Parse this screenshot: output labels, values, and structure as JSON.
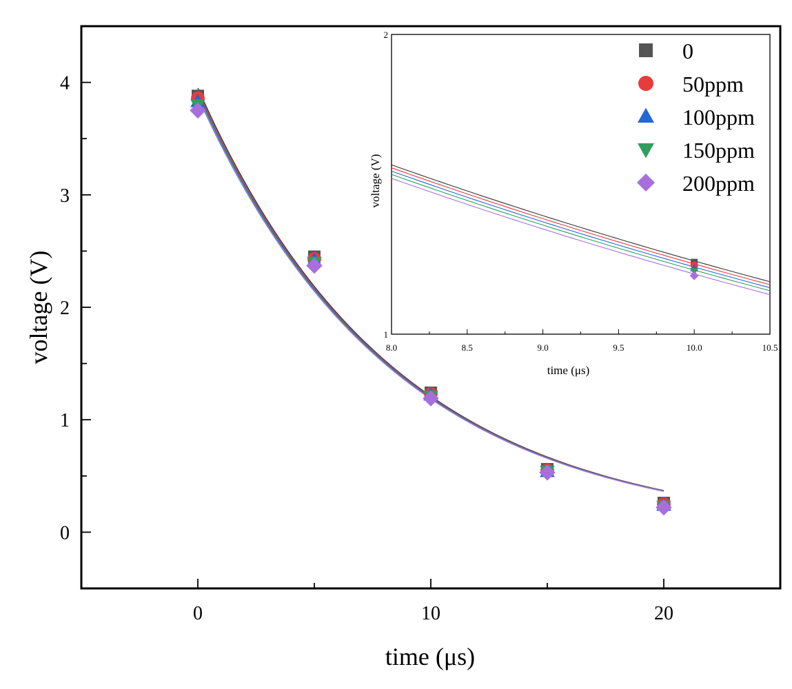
{
  "chart_data": [
    {
      "type": "scatter",
      "title": "",
      "xlabel": "time (μs)",
      "ylabel": "voltage (V)",
      "xlim": [
        -5,
        25
      ],
      "ylim": [
        -0.5,
        4.5
      ],
      "xticks": [
        0,
        10,
        20
      ],
      "yticks": [
        0,
        1,
        2,
        3,
        4
      ],
      "x": [
        0,
        5,
        10,
        15,
        20
      ],
      "series": [
        {
          "name": "0",
          "marker": "square",
          "color": "#555555",
          "values": [
            3.88,
            2.45,
            1.24,
            0.56,
            0.26
          ]
        },
        {
          "name": "50ppm",
          "marker": "circle",
          "color": "#e83b3b",
          "values": [
            3.86,
            2.43,
            1.23,
            0.55,
            0.25
          ]
        },
        {
          "name": "100ppm",
          "marker": "triangle-up",
          "color": "#2167d6",
          "values": [
            3.83,
            2.42,
            1.22,
            0.54,
            0.24
          ]
        },
        {
          "name": "150ppm",
          "marker": "triangle-down",
          "color": "#2f9e5f",
          "values": [
            3.8,
            2.4,
            1.21,
            0.54,
            0.23
          ]
        },
        {
          "name": "200ppm",
          "marker": "diamond",
          "color": "#a86fdc",
          "values": [
            3.75,
            2.37,
            1.19,
            0.53,
            0.22
          ]
        }
      ],
      "fit_lines": {
        "x_range": [
          0,
          20
        ],
        "tau": 8.45,
        "colors": [
          "#333333",
          "#e83b3b",
          "#2167d6",
          "#2f9e5f",
          "#a86fdc"
        ],
        "start_values": [
          3.95,
          3.93,
          3.91,
          3.89,
          3.87
        ]
      }
    },
    {
      "type": "scatter",
      "title": "",
      "xlabel": "time (μs)",
      "ylabel": "voltage (V)",
      "xlim": [
        8.0,
        10.5
      ],
      "ylim": [
        1,
        2
      ],
      "xticks": [
        8.0,
        8.5,
        9.0,
        9.5,
        10.0,
        10.5
      ],
      "xtick_labels": [
        "8.0",
        "8.5",
        "9.0",
        "9.5",
        "10.0",
        "10.5"
      ],
      "yticks": [
        1,
        2
      ],
      "ytick_labels": [
        "1",
        "2"
      ],
      "fit_lines": [
        {
          "name": "0",
          "color": "#333333",
          "x": [
            8.0,
            10.5
          ],
          "y": [
            1.565,
            1.175
          ]
        },
        {
          "name": "50ppm",
          "color": "#e83b3b",
          "x": [
            8.0,
            10.5
          ],
          "y": [
            1.555,
            1.165
          ]
        },
        {
          "name": "100ppm",
          "color": "#2167d6",
          "x": [
            8.0,
            10.5
          ],
          "y": [
            1.544,
            1.155
          ]
        },
        {
          "name": "150ppm",
          "color": "#2f9e5f",
          "x": [
            8.0,
            10.5
          ],
          "y": [
            1.533,
            1.145
          ]
        },
        {
          "name": "200ppm",
          "color": "#a86fdc",
          "x": [
            8.0,
            10.5
          ],
          "y": [
            1.52,
            1.132
          ]
        }
      ],
      "points": [
        {
          "name": "0",
          "x": 10.0,
          "y": 1.24
        },
        {
          "name": "50ppm",
          "x": 10.0,
          "y": 1.23
        },
        {
          "name": "100ppm",
          "x": 10.0,
          "y": 1.22
        },
        {
          "name": "150ppm",
          "x": 10.0,
          "y": 1.21
        },
        {
          "name": "200ppm",
          "x": 10.0,
          "y": 1.195
        }
      ],
      "legend": {
        "placement": "top-right",
        "entries": [
          "0",
          "50ppm",
          "100ppm",
          "150ppm",
          "200ppm"
        ]
      }
    }
  ]
}
